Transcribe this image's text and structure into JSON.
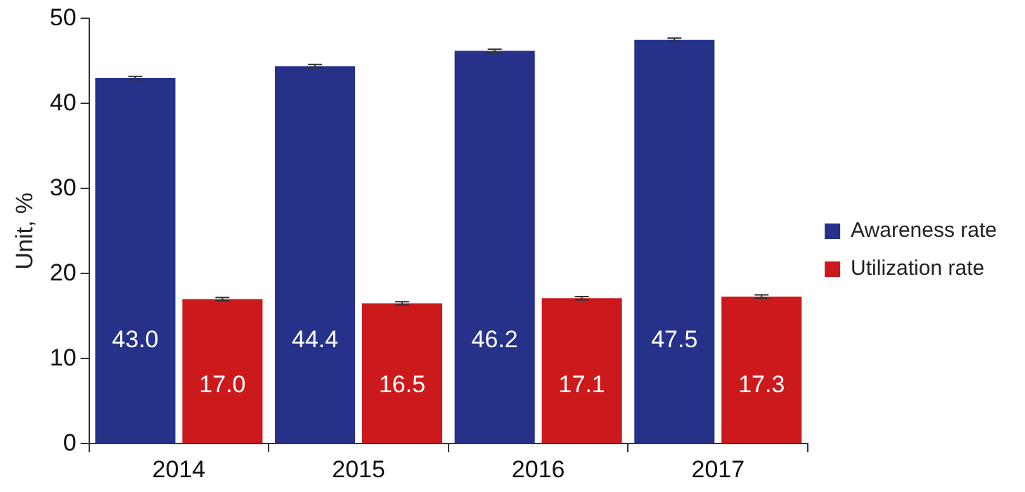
{
  "chart_data": {
    "type": "bar",
    "ylabel": "Unit, %",
    "categories": [
      "2014",
      "2015",
      "2016",
      "2017"
    ],
    "series": [
      {
        "name": "Awareness rate",
        "color": "#263189",
        "values": [
          43.0,
          44.4,
          46.2,
          47.5
        ],
        "value_labels": [
          "43.0",
          "44.4",
          "46.2",
          "47.5"
        ],
        "errors": [
          0.2,
          0.2,
          0.2,
          0.2
        ]
      },
      {
        "name": "Utilization rate",
        "color": "#cc1a1c",
        "values": [
          17.0,
          16.5,
          17.1,
          17.3
        ],
        "value_labels": [
          "17.0",
          "16.5",
          "17.1",
          "17.3"
        ],
        "errors": [
          0.2,
          0.2,
          0.2,
          0.2
        ]
      }
    ],
    "ylim": [
      0,
      50
    ],
    "yticks": [
      0,
      10,
      20,
      30,
      40,
      50
    ],
    "grid": false,
    "legend": "right"
  }
}
